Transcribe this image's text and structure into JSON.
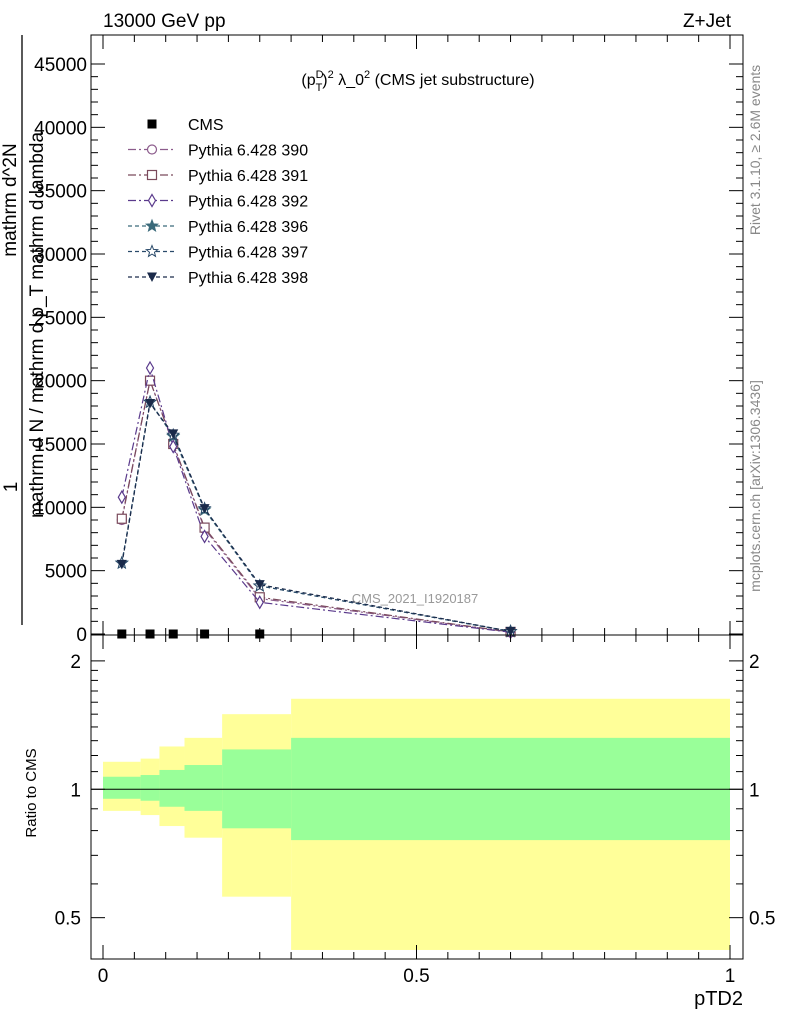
{
  "header": {
    "energy_label": "13000 GeV pp",
    "process_label": "Z+Jet",
    "plot_title": "(p_T^D)^2 λ_0^2 (CMS jet substructure)",
    "watermark": "CMS_2021_I1920187",
    "rivet_label": "Rivet 3.1.10, ≥ 2.6M events",
    "mcplots_label": "mcplots.cern.ch [arXiv:1306.3436]"
  },
  "chart_data": [
    {
      "type": "line",
      "panel": "main",
      "xlabel": "pTD2",
      "ylabel_line1": "1",
      "ylabel_line2": "mathrm d N / mathrm d p_T mathrm d lambda",
      "ylabel_line3": "mathrm d^2N",
      "ylim": [
        0,
        47000
      ],
      "xlim": [
        -0.01,
        1.0
      ],
      "yticks": [
        "0",
        "5000",
        "10000",
        "15000",
        "20000",
        "25000",
        "30000",
        "35000",
        "40000",
        "45000"
      ],
      "legend_position": "top-left",
      "x": [
        0.03,
        0.075,
        0.112,
        0.162,
        0.25,
        0.65
      ],
      "series": [
        {
          "name": "CMS",
          "color": "#000000",
          "marker": "square-filled",
          "dash": "",
          "values": [
            0,
            0,
            0,
            0,
            0,
            null
          ]
        },
        {
          "name": "Pythia 6.428 390",
          "color": "#8c5c8c",
          "marker": "circle-open",
          "dash": "8,3,2,3",
          "values": [
            9000,
            20000,
            15000,
            8300,
            2800,
            150
          ]
        },
        {
          "name": "Pythia 6.428 391",
          "color": "#7a4a5c",
          "marker": "square-open",
          "dash": "8,3,2,3",
          "values": [
            9100,
            20000,
            15000,
            8400,
            2900,
            160
          ]
        },
        {
          "name": "Pythia 6.428 392",
          "color": "#5a3a8c",
          "marker": "diamond-open",
          "dash": "8,3,2,3",
          "values": [
            10800,
            21000,
            14800,
            7700,
            2500,
            140
          ]
        },
        {
          "name": "Pythia 6.428 396",
          "color": "#3a6a7a",
          "marker": "star-filled",
          "dash": "4,3",
          "values": [
            5600,
            18300,
            15600,
            9800,
            3800,
            200
          ]
        },
        {
          "name": "Pythia 6.428 397",
          "color": "#2a4a6a",
          "marker": "star-open",
          "dash": "4,3",
          "values": [
            5600,
            18300,
            15700,
            9900,
            3800,
            200
          ]
        },
        {
          "name": "Pythia 6.428 398",
          "color": "#1a2a4a",
          "marker": "triangle-down-filled",
          "dash": "4,3",
          "values": [
            5500,
            18200,
            15800,
            9900,
            3900,
            210
          ]
        }
      ]
    },
    {
      "type": "area",
      "panel": "ratio",
      "ylabel": "Ratio to CMS",
      "ylim": [
        0.4,
        2.3
      ],
      "log_scale": true,
      "yticks": [
        "0.5",
        "1",
        "2"
      ],
      "xticks": [
        "0",
        "0.5",
        "1"
      ],
      "bin_edges": [
        0.0,
        0.06,
        0.09,
        0.13,
        0.19,
        0.3,
        1.0
      ],
      "inner_band": {
        "color": "#99ff99",
        "lower": [
          0.95,
          0.94,
          0.91,
          0.89,
          0.81,
          0.76
        ],
        "upper": [
          1.07,
          1.08,
          1.11,
          1.14,
          1.24,
          1.32
        ]
      },
      "outer_band": {
        "color": "#ffff99",
        "lower": [
          0.89,
          0.87,
          0.82,
          0.77,
          0.56,
          0.42
        ],
        "upper": [
          1.16,
          1.18,
          1.26,
          1.32,
          1.5,
          1.63
        ]
      },
      "reference_line": 1
    }
  ]
}
